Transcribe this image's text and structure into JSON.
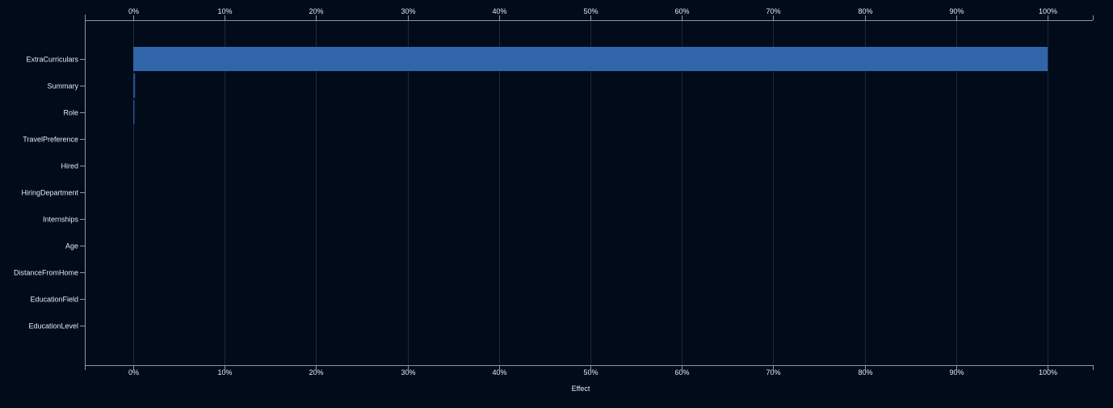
{
  "chart_data": {
    "type": "bar",
    "orientation": "horizontal",
    "categories": [
      "ExtraCurriculars",
      "Summary",
      "Role",
      "TravelPreference",
      "Hired",
      "HiringDepartment",
      "Internships",
      "Age",
      "DistanceFromHome",
      "EducationField",
      "EducationLevel"
    ],
    "values": [
      100,
      0.2,
      0.1,
      0,
      0,
      0,
      0,
      0,
      0,
      0,
      0
    ],
    "xlabel": "Effect",
    "ylabel": "",
    "xlim": [
      0,
      100
    ],
    "x_ticks": [
      "0%",
      "10%",
      "20%",
      "30%",
      "40%",
      "50%",
      "60%",
      "70%",
      "80%",
      "90%",
      "100%"
    ],
    "x_axis_positions": [
      "top",
      "bottom"
    ],
    "grid": "vertical",
    "colors": {
      "background": "#010b1a",
      "bar": "#3165aa",
      "bar_small": "#2a4f8f",
      "grid": "#1c2a3d",
      "axis": "#8a96a8",
      "text": "#e6ebf2"
    }
  }
}
